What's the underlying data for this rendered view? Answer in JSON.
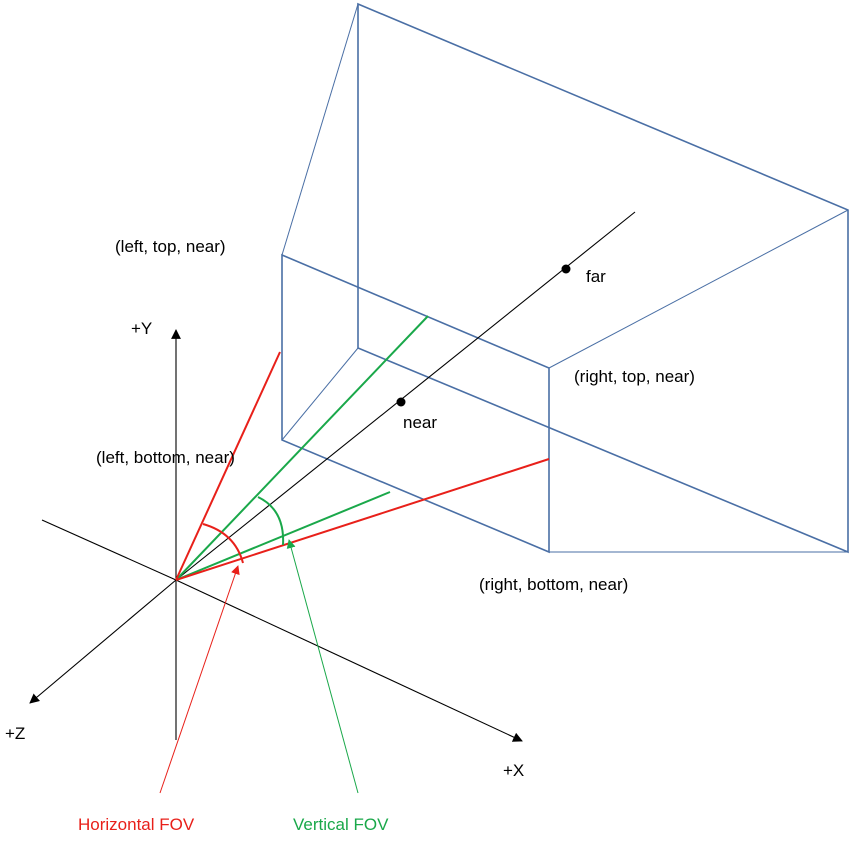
{
  "labels": {
    "left_top_near": "(left, top, near)",
    "left_bottom_near": "(left, bottom, near)",
    "right_top_near": "(right, top, near)",
    "right_bottom_near": "(right, bottom, near)",
    "far": "far",
    "near": "near",
    "axis_y": "+Y",
    "axis_z": "+Z",
    "axis_x": "+X",
    "horizontal_fov": "Horizontal FOV",
    "vertical_fov": "Vertical FOV"
  },
  "colors": {
    "frustum": "#4a6fa5",
    "horizontal_fov": "#e8201a",
    "vertical_fov": "#1aa84a",
    "axes": "#000000"
  }
}
